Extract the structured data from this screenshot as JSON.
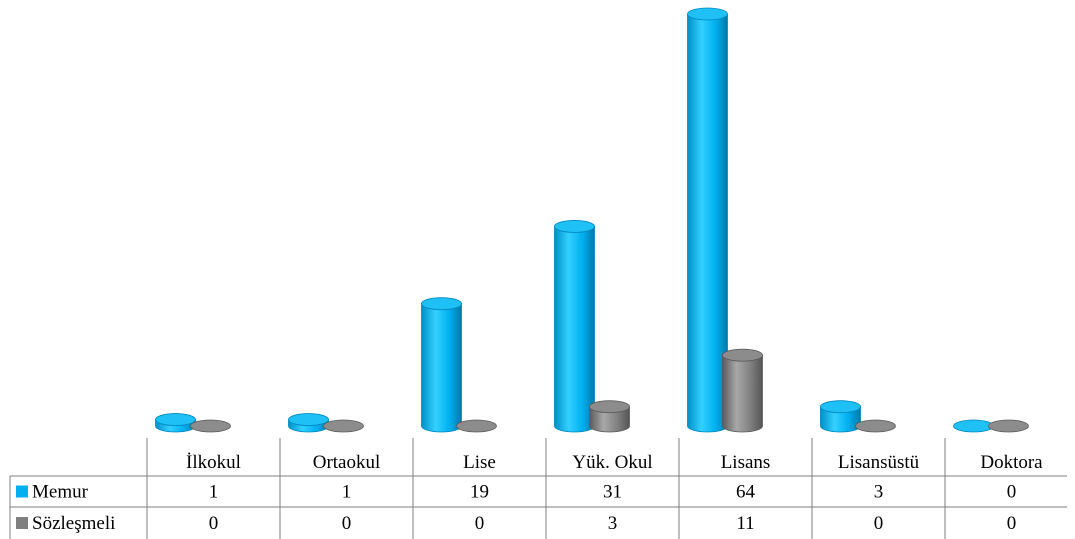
{
  "chart_data": {
    "type": "bar",
    "style": "3d-cylinder",
    "categories": [
      "İlkokul",
      "Ortaokul",
      "Lise",
      "Yük. Okul",
      "Lisans",
      "Lisansüstü",
      "Doktora"
    ],
    "series": [
      {
        "name": "Memur",
        "values": [
          1,
          1,
          19,
          31,
          64,
          3,
          0
        ],
        "color": "#00b0f0"
      },
      {
        "name": "Sözleşmeli",
        "values": [
          0,
          0,
          0,
          3,
          11,
          0,
          0
        ],
        "color": "#808080"
      }
    ],
    "ylim": [
      0,
      64
    ],
    "grid": false,
    "legend": "data-table-left",
    "data_table": true
  }
}
